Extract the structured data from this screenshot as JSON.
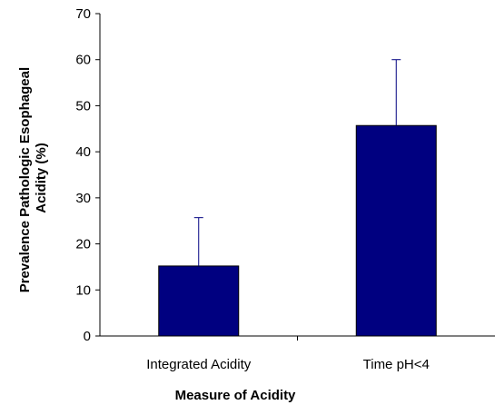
{
  "chart_data": {
    "type": "bar",
    "title": "",
    "xlabel": "Measure of Acidity",
    "ylabel": "Prevalence Pathologic Esophageal Acidity (%)",
    "ylabel_lines": [
      "Prevalence Pathologic Esophageal",
      "Acidity (%)"
    ],
    "categories": [
      "Integrated Acidity",
      "Time pH<4"
    ],
    "values": [
      15.2,
      45.7
    ],
    "error_upper": [
      25.7,
      60.0
    ],
    "ylim": [
      0,
      70
    ],
    "yticks": [
      0,
      10,
      20,
      30,
      40,
      50,
      60,
      70
    ],
    "bar_color": "#000080",
    "grid": false,
    "legend": "none"
  }
}
